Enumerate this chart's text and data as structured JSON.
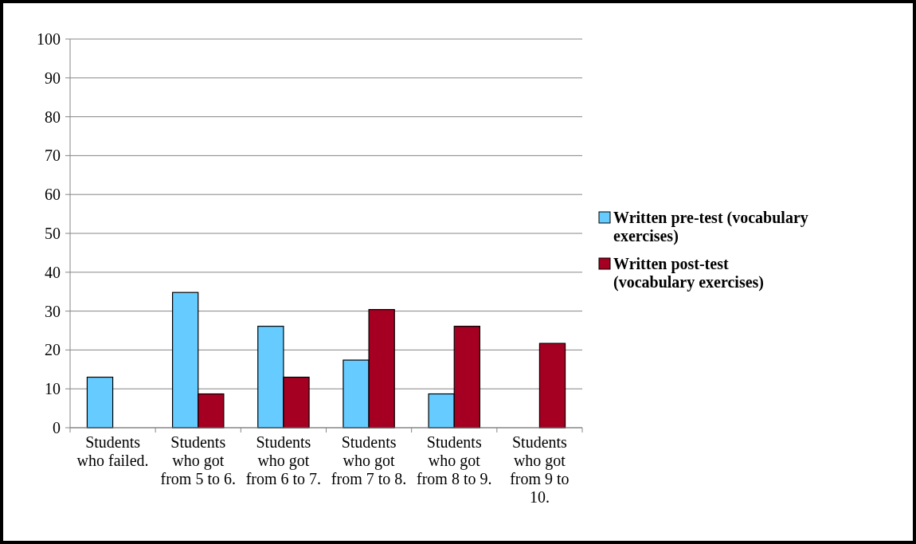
{
  "chart_data": {
    "type": "bar",
    "categories": [
      "Students who failed.",
      "Students who got from 5 to 6.",
      "Students who got from 6 to 7.",
      "Students who got from 7 to 8.",
      "Students who got from 8 to 9.",
      "Students who got from 9 to 10."
    ],
    "series": [
      {
        "name": "Written pre-test (vocabulary exercises)",
        "color": "#66ccff",
        "values": [
          13,
          34.8,
          26.1,
          17.4,
          8.7,
          0
        ]
      },
      {
        "name": "Written post-test (vocabulary exercises)",
        "color": "#a50021",
        "values": [
          0,
          8.7,
          13,
          30.4,
          26.1,
          21.7
        ]
      }
    ],
    "ylim": [
      0,
      100
    ],
    "yticks": [
      0,
      10,
      20,
      30,
      40,
      50,
      60,
      70,
      80,
      90,
      100
    ],
    "grid": "y",
    "legend": "right"
  }
}
